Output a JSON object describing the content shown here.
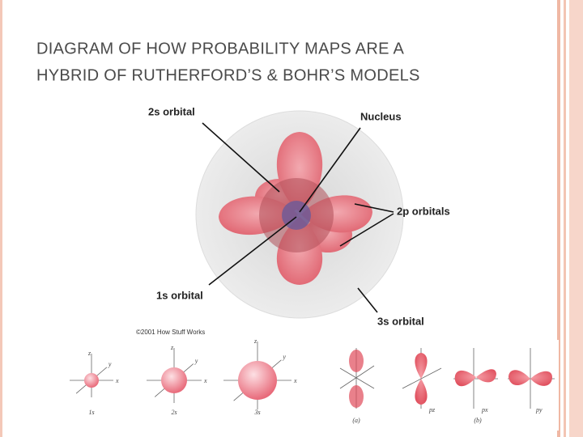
{
  "title": {
    "line1": "DIAGRAM OF HOW PROBABILITY MAPS ARE A",
    "line2": "HYBRID OF RUTHERFORD’S & BOHR’S MODELS"
  },
  "diagram": {
    "labels": {
      "orbital_2s": "2s orbital",
      "nucleus": "Nucleus",
      "orbitals_2p": "2p orbitals",
      "orbital_1s": "1s orbital",
      "orbital_3s": "3s orbital"
    },
    "credit": "©2001 How Stuff Works"
  },
  "s_orbitals": [
    {
      "caption": "1s",
      "axes": [
        "z",
        "y",
        "x"
      ]
    },
    {
      "caption": "2s",
      "axes": [
        "z",
        "y",
        "x"
      ]
    },
    {
      "caption": "3s",
      "axes": [
        "z",
        "y",
        "x"
      ]
    }
  ],
  "p_orbitals": {
    "panel_a": "(a)",
    "panel_b": "(b)",
    "labels": [
      "pz",
      "px",
      "py"
    ]
  }
}
